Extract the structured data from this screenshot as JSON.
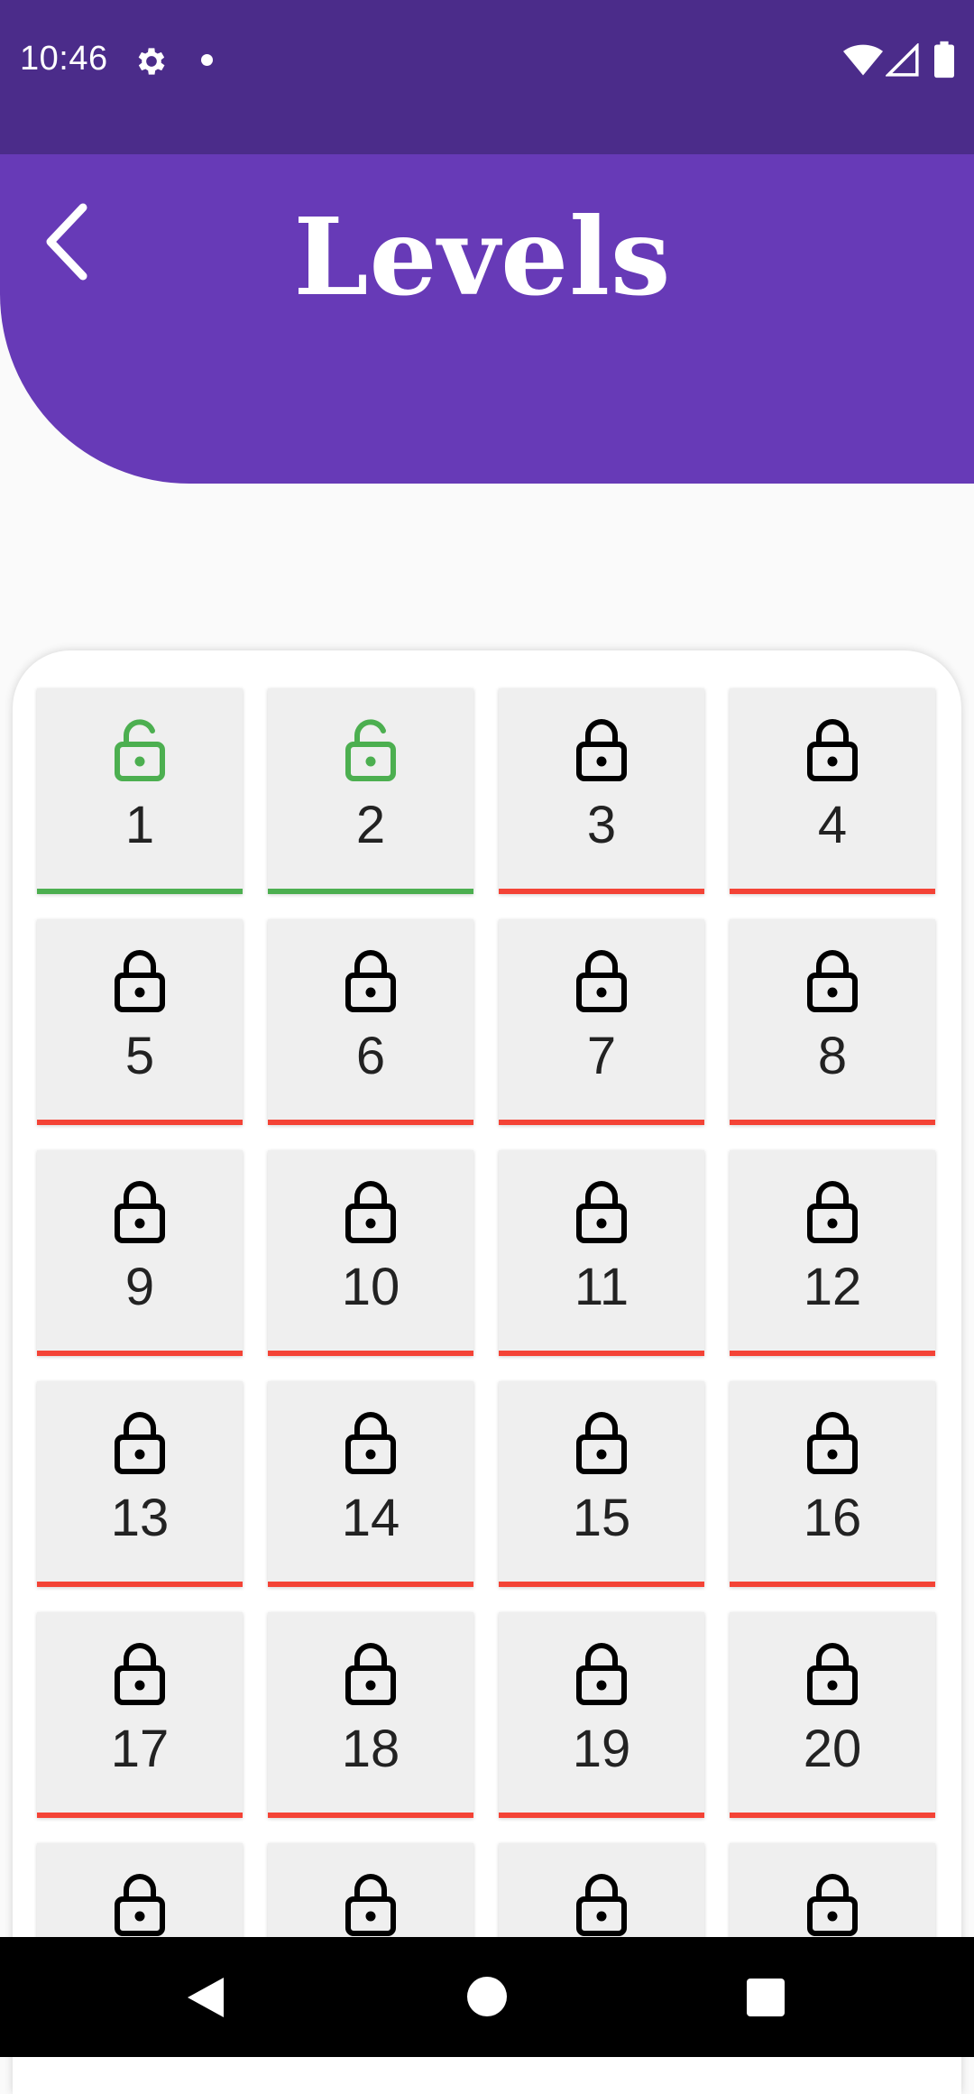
{
  "status_bar": {
    "time": "10:46",
    "icons": [
      "gear-icon",
      "notification-dot-icon",
      "wifi-icon",
      "signal-icon",
      "battery-icon"
    ]
  },
  "header": {
    "title": "Levels",
    "back_icon": "chevron-left-icon"
  },
  "colors": {
    "status_bar": "#4b2c8a",
    "header": "#673ab7",
    "unlocked": "#4caf50",
    "locked": "#f44336",
    "tile_bg": "#efefef"
  },
  "levels": [
    {
      "label": "1",
      "status": "unlocked"
    },
    {
      "label": "2",
      "status": "unlocked"
    },
    {
      "label": "3",
      "status": "locked"
    },
    {
      "label": "4",
      "status": "locked"
    },
    {
      "label": "5",
      "status": "locked"
    },
    {
      "label": "6",
      "status": "locked"
    },
    {
      "label": "7",
      "status": "locked"
    },
    {
      "label": "8",
      "status": "locked"
    },
    {
      "label": "9",
      "status": "locked"
    },
    {
      "label": "10",
      "status": "locked"
    },
    {
      "label": "11",
      "status": "locked"
    },
    {
      "label": "12",
      "status": "locked"
    },
    {
      "label": "13",
      "status": "locked"
    },
    {
      "label": "14",
      "status": "locked"
    },
    {
      "label": "15",
      "status": "locked"
    },
    {
      "label": "16",
      "status": "locked"
    },
    {
      "label": "17",
      "status": "locked"
    },
    {
      "label": "18",
      "status": "locked"
    },
    {
      "label": "19",
      "status": "locked"
    },
    {
      "label": "20",
      "status": "locked"
    },
    {
      "label": "",
      "status": "locked"
    },
    {
      "label": "",
      "status": "locked"
    },
    {
      "label": "",
      "status": "locked"
    },
    {
      "label": "",
      "status": "locked"
    }
  ],
  "nav_bar": {
    "icons": [
      "nav-back-icon",
      "nav-home-icon",
      "nav-recents-icon"
    ]
  }
}
